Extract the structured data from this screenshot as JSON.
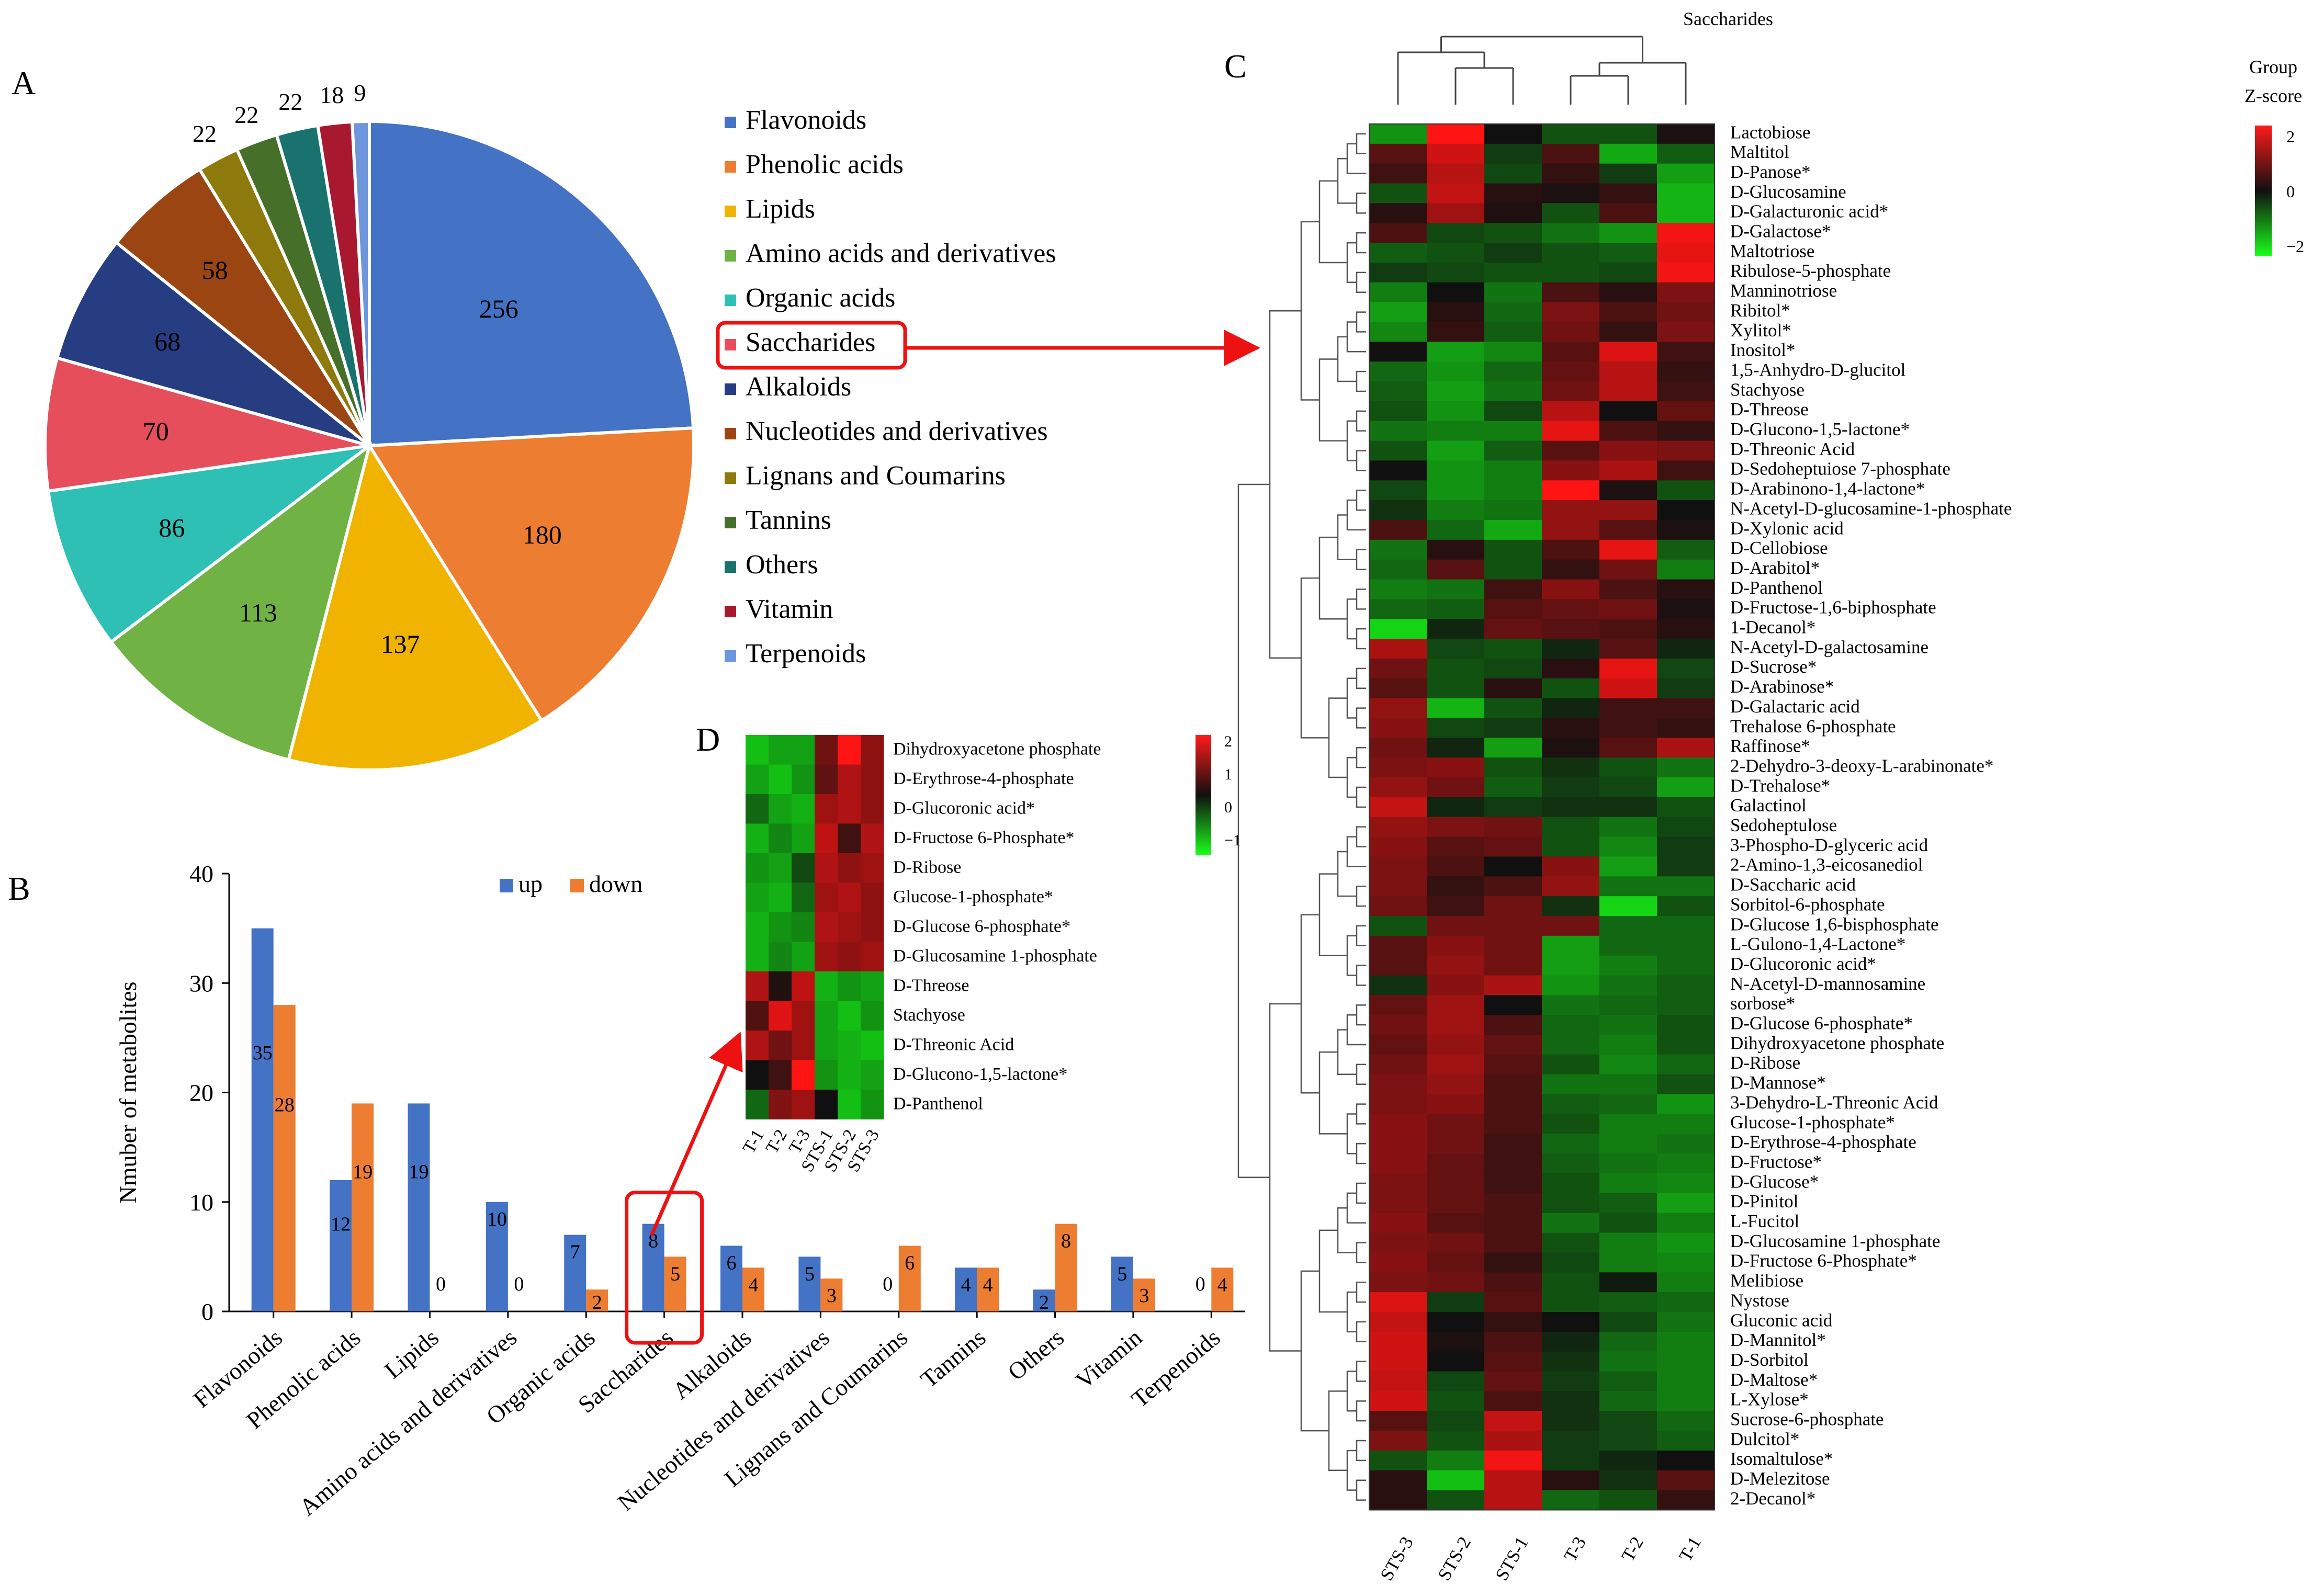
{
  "panels": {
    "a": "A",
    "b": "B",
    "c": "C",
    "d": "D"
  },
  "pie": {
    "chart_data": {
      "type": "pie",
      "categories": [
        "Flavonoids",
        "Phenolic acids",
        "Lipids",
        "Amino acids and derivatives",
        "Organic acids",
        "Saccharides",
        "Alkaloids",
        "Nucleotides and derivatives",
        "Lignans and Coumarins",
        "Tannins",
        "Others",
        "Vitamin",
        "Terpenoids"
      ],
      "values": [
        256,
        180,
        137,
        113,
        86,
        70,
        68,
        58,
        22,
        22,
        22,
        18,
        9
      ],
      "colors": [
        "#4472C4",
        "#ED7D31",
        "#F0B400",
        "#70B244",
        "#2EC0B4",
        "#E64E5C",
        "#263D82",
        "#9B4612",
        "#8E7A0C",
        "#466F2A",
        "#19726E",
        "#A8182E",
        "#6D96DC"
      ],
      "outside_labels": [
        22,
        22,
        22,
        18,
        9
      ]
    }
  },
  "legend": {
    "items": [
      "Flavonoids",
      "Phenolic acids",
      "Lipids",
      "Amino acids and derivatives",
      "Organic acids",
      "Saccharides",
      "Alkaloids",
      "Nucleotides and derivatives",
      "Lignans and Coumarins",
      "Tannins",
      "Others",
      "Vitamin",
      "Terpenoids"
    ],
    "highlight": "Saccharides"
  },
  "bar": {
    "chart_data": {
      "type": "bar",
      "ylabel": "Nmuber of metabolites",
      "ylim": [
        0,
        40
      ],
      "yticks": [
        0,
        10,
        20,
        30,
        40
      ],
      "categories": [
        "Flavonoids",
        "Phenolic acids",
        "Lipids",
        "Amino acids and derivatives",
        "Organic acids",
        "Saccharides",
        "Alkaloids",
        "Nucleotides and derivatives",
        "Lignans and Coumarins",
        "Tannins",
        "Others",
        "Vitamin",
        "Terpenoids"
      ],
      "series": [
        {
          "name": "up",
          "color": "#4472C4",
          "values": [
            35,
            12,
            19,
            10,
            7,
            8,
            6,
            5,
            0,
            4,
            2,
            5,
            0
          ]
        },
        {
          "name": "down",
          "color": "#ED7D31",
          "values": [
            28,
            19,
            0,
            0,
            2,
            5,
            4,
            3,
            6,
            4,
            8,
            3,
            4
          ]
        }
      ],
      "highlight": "Saccharides"
    }
  },
  "heatmap_c": {
    "chart_data": {
      "type": "heatmap",
      "title": "Saccharides",
      "legend_title_1": "Group",
      "legend_title_2": "Z-score",
      "legend_ticks": [
        "2",
        "0",
        "−2"
      ],
      "columns": [
        "STS-3",
        "STS-2",
        "STS-1",
        "T-3",
        "T-2",
        "T-1"
      ],
      "rows": [
        "Lactobiose",
        "Maltitol",
        "D-Panose*",
        "D-Glucosamine",
        "D-Galacturonic acid*",
        "D-Galactose*",
        "Maltotriose",
        "Ribulose-5-phosphate",
        "Manninotriose",
        "Ribitol*",
        "Xylitol*",
        "Inositol*",
        "1,5-Anhydro-D-glucitol",
        "Stachyose",
        "D-Threose",
        "D-Glucono-1,5-lactone*",
        "D-Threonic Acid",
        "D-Sedoheptuiose 7-phosphate",
        "D-Arabinono-1,4-lactone*",
        "N-Acetyl-D-glucosamine-1-phosphate",
        "D-Xylonic acid",
        "D-Cellobiose",
        "D-Arabitol*",
        "D-Panthenol",
        "D-Fructose-1,6-biphosphate",
        "1-Decanol*",
        "N-Acetyl-D-galactosamine",
        "D-Sucrose*",
        "D-Arabinose*",
        "D-Galactaric acid",
        "Trehalose 6-phosphate",
        "Raffinose*",
        "2-Dehydro-3-deoxy-L-arabinonate*",
        "D-Trehalose*",
        "Galactinol",
        "Sedoheptulose",
        "3-Phospho-D-glyceric acid",
        "2-Amino-1,3-eicosanediol",
        "D-Saccharic acid",
        "Sorbitol-6-phosphate",
        "D-Glucose 1,6-bisphosphate",
        "L-Gulono-1,4-Lactone*",
        "D-Glucoronic acid*",
        "N-Acetyl-D-mannosamine",
        "sorbose*",
        "D-Glucose 6-phosphate*",
        "Dihydroxyacetone phosphate",
        "D-Ribose",
        "D-Mannose*",
        "3-Dehydro-L-Threonic Acid",
        "Glucose-1-phosphate*",
        "D-Erythrose-4-phosphate",
        "D-Fructose*",
        "D-Glucose*",
        "D-Pinitol",
        "L-Fucitol",
        "D-Glucosamine 1-phosphate",
        "D-Fructose 6-Phosphate*",
        "Melibiose",
        "Nystose",
        "Gluconic acid",
        "D-Mannitol*",
        "D-Sorbitol",
        "D-Maltose*",
        "L-Xylose*",
        "Sucrose-6-phosphate",
        "Dulcitol*",
        "Isomaltulose*",
        "D-Melezitose",
        "2-Decanol*"
      ],
      "values": [
        [
          -1.2,
          2.0,
          0.0,
          -0.6,
          -0.6,
          0.1
        ],
        [
          0.6,
          1.6,
          -0.4,
          0.5,
          -1.4,
          -0.7
        ],
        [
          0.4,
          1.4,
          -0.5,
          0.3,
          -0.4,
          -1.3
        ],
        [
          -0.6,
          1.5,
          0.2,
          0.1,
          0.3,
          -1.5
        ],
        [
          0.2,
          1.2,
          0.1,
          -0.6,
          0.5,
          -1.5
        ],
        [
          0.5,
          -0.5,
          -0.6,
          -0.9,
          -1.2,
          1.9
        ],
        [
          -0.7,
          -0.6,
          -0.4,
          -0.6,
          -0.7,
          1.8
        ],
        [
          -0.4,
          -0.5,
          -0.6,
          -0.6,
          -0.5,
          1.9
        ],
        [
          -1.0,
          0.0,
          -0.9,
          0.5,
          0.2,
          0.9
        ],
        [
          -1.3,
          0.2,
          -0.8,
          0.9,
          0.5,
          0.8
        ],
        [
          -1.1,
          0.3,
          -0.7,
          0.8,
          0.3,
          0.9
        ],
        [
          0.0,
          -1.3,
          -1.1,
          0.6,
          1.7,
          0.4
        ],
        [
          -0.8,
          -1.2,
          -0.8,
          0.7,
          1.4,
          0.3
        ],
        [
          -0.7,
          -1.3,
          -0.9,
          0.8,
          1.4,
          0.4
        ],
        [
          -0.6,
          -1.2,
          -0.5,
          1.4,
          0.0,
          0.7
        ],
        [
          -0.9,
          -1.0,
          -1.0,
          1.8,
          0.5,
          0.3
        ],
        [
          -0.6,
          -1.3,
          -0.7,
          0.6,
          1.0,
          0.9
        ],
        [
          0.0,
          -1.2,
          -1.0,
          1.0,
          1.3,
          0.4
        ],
        [
          -0.5,
          -1.2,
          -1.0,
          2.0,
          0.1,
          -0.6
        ],
        [
          -0.3,
          -1.0,
          -0.9,
          1.1,
          1.1,
          0.0
        ],
        [
          0.5,
          -0.8,
          -1.4,
          1.1,
          0.6,
          0.1
        ],
        [
          -0.9,
          0.2,
          -0.6,
          0.5,
          1.8,
          -0.7
        ],
        [
          -0.8,
          0.6,
          -0.6,
          0.3,
          0.8,
          -1.0
        ],
        [
          -1.0,
          -0.9,
          0.4,
          1.0,
          0.5,
          0.2
        ],
        [
          -0.8,
          -0.7,
          0.6,
          0.7,
          0.8,
          0.1
        ],
        [
          -1.8,
          -0.2,
          0.7,
          0.6,
          0.5,
          0.2
        ],
        [
          1.3,
          -0.5,
          -0.6,
          -0.2,
          0.6,
          -0.2
        ],
        [
          0.8,
          -0.6,
          -0.5,
          0.2,
          1.8,
          -0.5
        ],
        [
          0.6,
          -0.6,
          0.2,
          -0.6,
          1.6,
          -0.4
        ],
        [
          1.1,
          -1.5,
          -0.6,
          -0.2,
          0.4,
          0.4
        ],
        [
          1.0,
          -0.5,
          -0.4,
          0.2,
          0.4,
          0.3
        ],
        [
          0.8,
          -0.2,
          -1.3,
          0.1,
          0.6,
          1.3
        ],
        [
          0.9,
          1.0,
          -0.6,
          -0.3,
          -0.6,
          -0.9
        ],
        [
          1.1,
          0.8,
          -0.7,
          -0.4,
          -0.5,
          -1.3
        ],
        [
          1.5,
          -0.2,
          -0.4,
          -0.3,
          -0.3,
          -0.6
        ],
        [
          1.1,
          0.9,
          0.8,
          -0.6,
          -0.9,
          -0.5
        ],
        [
          1.0,
          0.6,
          0.7,
          -0.6,
          -1.1,
          -0.4
        ],
        [
          0.9,
          0.5,
          0.0,
          1.0,
          -1.3,
          -0.4
        ],
        [
          0.9,
          0.3,
          0.5,
          1.1,
          -0.9,
          -0.9
        ],
        [
          0.8,
          0.4,
          0.8,
          -0.3,
          -1.8,
          -0.6
        ],
        [
          -0.6,
          0.8,
          0.8,
          0.8,
          -0.8,
          -0.8
        ],
        [
          0.6,
          1.0,
          0.8,
          -1.3,
          -0.8,
          -0.8
        ],
        [
          0.6,
          1.1,
          0.8,
          -1.3,
          -1.0,
          -0.8
        ],
        [
          -0.3,
          1.0,
          1.3,
          -1.2,
          -0.9,
          -0.7
        ],
        [
          0.7,
          1.2,
          0.0,
          -0.9,
          -0.8,
          -0.7
        ],
        [
          0.8,
          1.2,
          0.5,
          -0.8,
          -0.9,
          -0.6
        ],
        [
          0.7,
          1.1,
          0.7,
          -0.8,
          -1.0,
          -0.6
        ],
        [
          0.8,
          1.2,
          0.6,
          -0.6,
          -1.1,
          -0.8
        ],
        [
          0.9,
          1.1,
          0.5,
          -0.9,
          -0.9,
          -0.6
        ],
        [
          0.9,
          1.0,
          0.5,
          -0.7,
          -0.8,
          -1.2
        ],
        [
          1.0,
          0.8,
          0.5,
          -0.6,
          -1.0,
          -1.0
        ],
        [
          1.0,
          0.8,
          0.4,
          -0.8,
          -1.0,
          -0.9
        ],
        [
          1.0,
          0.7,
          0.4,
          -0.7,
          -0.9,
          -1.0
        ],
        [
          0.9,
          0.7,
          0.4,
          -0.6,
          -1.0,
          -1.1
        ],
        [
          0.9,
          0.7,
          0.5,
          -0.6,
          -0.7,
          -1.3
        ],
        [
          1.0,
          0.6,
          0.5,
          -0.9,
          -0.6,
          -1.0
        ],
        [
          0.9,
          0.8,
          0.5,
          -0.6,
          -1.0,
          -1.2
        ],
        [
          1.0,
          0.7,
          0.3,
          -0.5,
          -1.0,
          -1.1
        ],
        [
          0.9,
          0.8,
          0.5,
          -0.6,
          -0.1,
          -1.0
        ],
        [
          1.7,
          -0.4,
          0.6,
          -0.6,
          -0.7,
          -0.8
        ],
        [
          1.5,
          0.0,
          0.3,
          0.0,
          -0.5,
          -0.9
        ],
        [
          1.6,
          0.1,
          0.5,
          -0.2,
          -0.8,
          -1.0
        ],
        [
          1.6,
          0.0,
          0.6,
          -0.3,
          -0.9,
          -1.0
        ],
        [
          1.5,
          -0.5,
          0.7,
          -0.4,
          -0.7,
          -1.0
        ],
        [
          1.6,
          -0.6,
          0.5,
          -0.3,
          -0.8,
          -1.0
        ],
        [
          0.6,
          -0.5,
          1.5,
          -0.3,
          -0.5,
          -0.8
        ],
        [
          0.9,
          -0.6,
          1.3,
          -0.4,
          -0.5,
          -0.7
        ],
        [
          -0.6,
          -1.0,
          1.9,
          -0.4,
          -0.2,
          0.0
        ],
        [
          0.2,
          -1.6,
          1.4,
          0.2,
          -0.3,
          0.6
        ],
        [
          0.2,
          -0.6,
          1.4,
          -0.8,
          -0.6,
          0.3
        ]
      ]
    }
  },
  "heatmap_d": {
    "chart_data": {
      "type": "heatmap",
      "columns": [
        "T-1",
        "T-2",
        "T-3",
        "STS-1",
        "STS-2",
        "STS-3"
      ],
      "legend_ticks": [
        "2",
        "1",
        "0",
        "−1"
      ],
      "rows": [
        "Dihydroxyacetone phosphate",
        "D-Erythrose-4-phosphate",
        "D-Glucoronic acid*",
        "D-Fructose 6-Phosphate*",
        "D-Ribose",
        "Glucose-1-phosphate*",
        "D-Glucose 6-phosphate*",
        "D-Glucosamine 1-phosphate",
        "D-Threose",
        "Stachyose",
        "D-Threonic Acid",
        "D-Glucono-1,5-lactone*",
        "D-Panthenol"
      ],
      "values": [
        [
          -1.2,
          -1.0,
          -1.0,
          0.6,
          1.5,
          0.8
        ],
        [
          -1.0,
          -1.2,
          -0.9,
          0.5,
          1.0,
          0.8
        ],
        [
          -0.6,
          -1.0,
          -1.1,
          0.9,
          1.0,
          0.8
        ],
        [
          -1.1,
          -0.8,
          -1.0,
          1.1,
          0.3,
          1.0
        ],
        [
          -0.9,
          -1.0,
          -0.4,
          1.0,
          0.8,
          0.9
        ],
        [
          -1.0,
          -1.1,
          -0.6,
          0.9,
          1.0,
          0.8
        ],
        [
          -1.1,
          -0.9,
          -0.8,
          1.0,
          0.9,
          0.8
        ],
        [
          -1.1,
          -0.8,
          -1.0,
          0.9,
          0.8,
          0.9
        ],
        [
          1.0,
          0.1,
          1.1,
          -1.1,
          -0.9,
          -1.0
        ],
        [
          0.4,
          1.3,
          0.9,
          -1.0,
          -1.2,
          -0.9
        ],
        [
          1.0,
          0.6,
          0.9,
          -1.0,
          -1.1,
          -1.2
        ],
        [
          0.0,
          0.3,
          1.8,
          -0.9,
          -1.1,
          -1.0
        ],
        [
          -0.6,
          0.7,
          0.9,
          0.0,
          -1.2,
          -0.9
        ]
      ]
    }
  }
}
